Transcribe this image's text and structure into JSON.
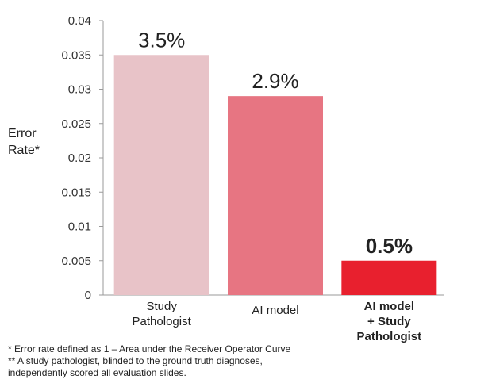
{
  "chart_data": {
    "type": "bar",
    "categories": [
      [
        "Study",
        "Pathologist"
      ],
      [
        "AI model"
      ],
      [
        "AI model",
        "+ Study",
        "Pathologist"
      ]
    ],
    "values": [
      0.035,
      0.029,
      0.005
    ],
    "data_labels": [
      "3.5%",
      "2.9%",
      "0.5%"
    ],
    "bar_colors": [
      "#e8c3c8",
      "#e77582",
      "#e8202e"
    ],
    "emphasized": [
      false,
      false,
      true
    ],
    "ylabel_lines": [
      "Error",
      "Rate*"
    ],
    "ylim": [
      0,
      0.04
    ],
    "yticks": [
      "0",
      "0.005",
      "0.01",
      "0.015",
      "0.02",
      "0.025",
      "0.03",
      "0.035",
      "0.04"
    ],
    "ytick_values": [
      0,
      0.005,
      0.01,
      0.015,
      0.02,
      0.025,
      0.03,
      0.035,
      0.04
    ],
    "grid": false,
    "legend": "none"
  },
  "footnotes": {
    "note1": "* Error rate defined as 1 – Area under the Receiver Operator Curve",
    "note2": "** A study pathologist, blinded to the ground truth diagnoses,\nindependently scored all evaluation slides."
  }
}
